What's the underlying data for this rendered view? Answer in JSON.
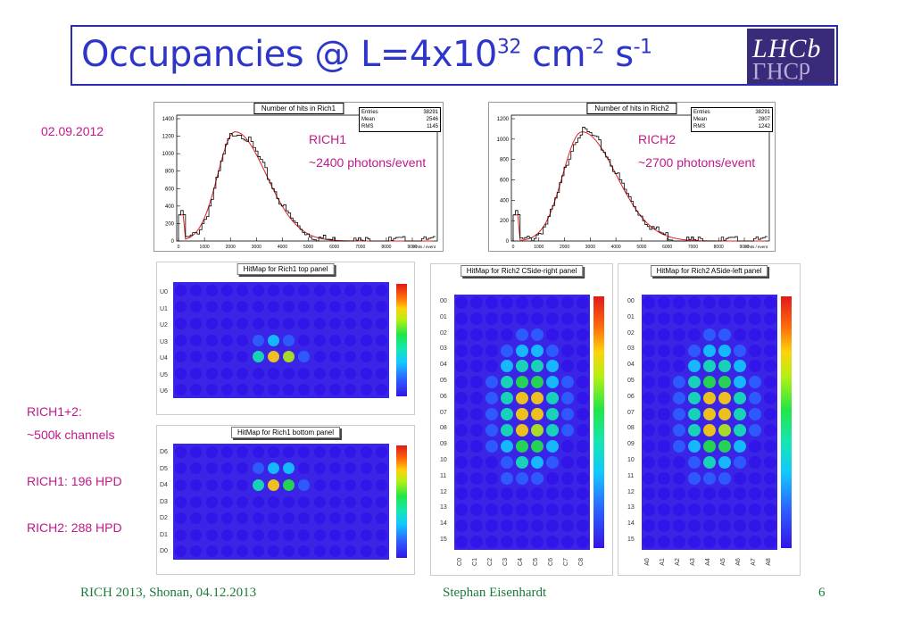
{
  "title": {
    "base": "Occupancies @ L=4x10",
    "exp1": "32",
    "mid": " cm",
    "exp2": "-2",
    "mid2": " s",
    "exp3": "-1"
  },
  "logo": {
    "text": "LHCb"
  },
  "date": "02.09.2012",
  "rich1_label": "RICH1",
  "rich1_photons": "~2400 photons/event",
  "rich2_label": "RICH2",
  "rich2_photons": "~2700 photons/event",
  "notes": {
    "channels_head": "RICH1+2:",
    "channels": "~500k channels",
    "rich1_hpd": "RICH1: 196 HPD",
    "rich2_hpd": "RICH2: 288 HPD"
  },
  "histo1": {
    "title": "Number of hits in Rich1",
    "stats": [
      {
        "k": "Entries",
        "v": "38291"
      },
      {
        "k": "Mean",
        "v": "2546"
      },
      {
        "k": "RMS",
        "v": "1145"
      }
    ],
    "xlabel": "# hits / event",
    "yticks": [
      "1400",
      "1200",
      "1000",
      "800",
      "600",
      "400",
      "200",
      "0"
    ],
    "xticks": [
      "0",
      "1000",
      "2000",
      "3000",
      "4000",
      "5000",
      "6000",
      "7000",
      "8000",
      "9000"
    ]
  },
  "histo2": {
    "title": "Number of hits in Rich2",
    "stats": [
      {
        "k": "Entries",
        "v": "38291"
      },
      {
        "k": "Mean",
        "v": "2807"
      },
      {
        "k": "RMS",
        "v": "1242"
      }
    ],
    "xlabel": "# hits / event",
    "yticks": [
      "1200",
      "1000",
      "800",
      "600",
      "400",
      "200",
      "0"
    ],
    "xticks": [
      "0",
      "1000",
      "2000",
      "3000",
      "4000",
      "5000",
      "6000",
      "7000",
      "8000",
      "9000"
    ]
  },
  "maps": {
    "rich1_top": {
      "title": "HitMap for Rich1 top panel",
      "rows": [
        "U0",
        "U1",
        "U2",
        "U3",
        "U4",
        "U5",
        "U6"
      ]
    },
    "rich1_bottom": {
      "title": "HitMap for Rich1 bottom panel",
      "rows": [
        "D6",
        "D5",
        "D4",
        "D3",
        "D2",
        "D1",
        "D0"
      ]
    },
    "rich2_c": {
      "title": "HitMap for Rich2 CSide-right panel",
      "rows": [
        "00",
        "01",
        "02",
        "03",
        "04",
        "05",
        "06",
        "07",
        "08",
        "09",
        "10",
        "11",
        "12",
        "13",
        "14",
        "15"
      ],
      "cols": [
        "C0",
        "C1",
        "C2",
        "C3",
        "C4",
        "C5",
        "C6",
        "C7",
        "C8"
      ]
    },
    "rich2_a": {
      "title": "HitMap for Rich2 ASide-left panel",
      "rows": [
        "00",
        "01",
        "02",
        "03",
        "04",
        "05",
        "06",
        "07",
        "08",
        "09",
        "10",
        "11",
        "12",
        "13",
        "14",
        "15"
      ],
      "cols": [
        "A0",
        "A1",
        "A2",
        "A3",
        "A4",
        "A5",
        "A6",
        "A7",
        "A8"
      ]
    }
  },
  "footer": {
    "left": "RICH 2013, Shonan, 04.12.2013",
    "center": "Stephan Eisenhardt",
    "page": "6"
  }
}
